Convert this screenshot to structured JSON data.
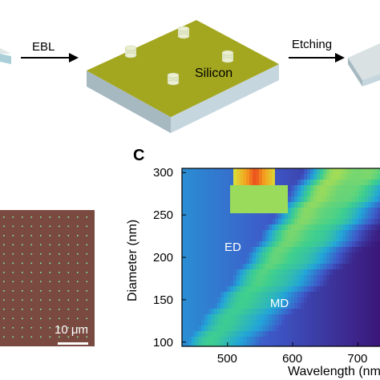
{
  "fab": {
    "step1_label": "EBL",
    "step2_label": "Etching",
    "substrate_label": "Silicon"
  },
  "micrograph": {
    "scale_bar_label": "10 μm"
  },
  "panel_c": {
    "letter": "C",
    "chart_data": {
      "type": "heatmap",
      "xlabel": "Wavelength (nm)",
      "ylabel": "Diameter (nm)",
      "x_ticks": [
        500,
        600,
        700
      ],
      "y_ticks": [
        100,
        150,
        200,
        250,
        300
      ],
      "xlim": [
        430,
        750
      ],
      "ylim": [
        95,
        305
      ],
      "annotations": [
        {
          "text": "ED",
          "x": 510,
          "y": 212
        },
        {
          "text": "MD",
          "x": 580,
          "y": 146
        }
      ],
      "colormap": [
        "#3b0f70",
        "#3d5ac9",
        "#22a5d8",
        "#3fcf8e",
        "#d7e33a",
        "#f4a21f",
        "#e8261c"
      ]
    }
  },
  "colors": {
    "substrate_top": "#a3a71f",
    "substrate_side": "#bfd2dc",
    "pillar": "#e9efd0",
    "micrograph_bg": "#7a4a41",
    "micrograph_dot": "#7ff0a0"
  }
}
